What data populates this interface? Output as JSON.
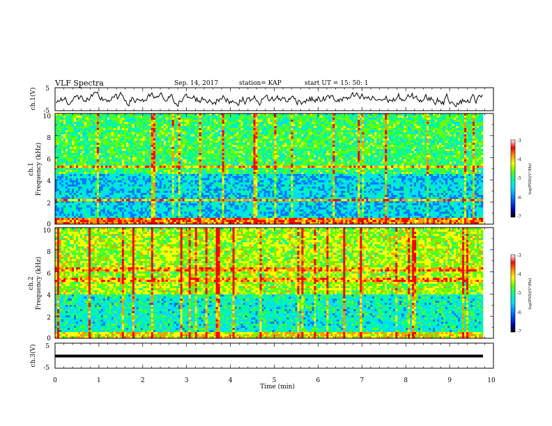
{
  "header": {
    "title": "VLF Spectra",
    "date": "Sep. 14, 2017",
    "station": "station= KAP",
    "start": "start  UT =   15: 50: 1"
  },
  "chart_data": [
    {
      "type": "line",
      "panel": "ch1-waveform",
      "ylabel": "ch.1(V)",
      "ylim": [
        -5,
        5
      ],
      "yticks": [
        "5",
        "-5"
      ],
      "xlim": [
        0,
        10
      ],
      "note_values": "continuous noisy waveform mostly between -3 and +3 V"
    },
    {
      "type": "heatmap",
      "panel": "ch1-spectrogram",
      "ylabel": "ch.1\nFrequency (kHz)",
      "ylabel_line1": "ch.1",
      "ylabel_line2": "Frequency (kHz)",
      "ylim": [
        0,
        10
      ],
      "yticks": [
        "0",
        "2",
        "4",
        "6",
        "8",
        "10"
      ],
      "xlim": [
        0,
        9.85
      ],
      "colorbar": {
        "label": "log(PSD)(V²/Hz)",
        "range": [
          -7,
          -3
        ],
        "ticks": [
          "-3",
          "-4",
          "-5",
          "-6",
          "-7"
        ]
      }
    },
    {
      "type": "heatmap",
      "panel": "ch2-spectrogram",
      "ylabel_line1": "ch.2",
      "ylabel_line2": "Frequency (kHz)",
      "ylim": [
        0,
        10
      ],
      "yticks": [
        "0",
        "2",
        "4",
        "6",
        "8",
        "10"
      ],
      "xlim": [
        0,
        9.85
      ],
      "colorbar": {
        "label": "log(PSD)(V²/Hz)",
        "range": [
          -7,
          -3
        ],
        "ticks": [
          "-3",
          "-4",
          "-5",
          "-6",
          "-7"
        ]
      }
    },
    {
      "type": "line",
      "panel": "ch3-waveform",
      "ylabel": "ch.3(V)",
      "ylim": [
        -5,
        5
      ],
      "yticks": [
        "5",
        "-5"
      ],
      "x": [
        0,
        9.85
      ],
      "y": [
        -1.5,
        -1.5
      ]
    }
  ],
  "xaxis": {
    "label": "Time (min)",
    "ticks": [
      "0",
      "1",
      "2",
      "3",
      "4",
      "5",
      "6",
      "7",
      "8",
      "9",
      "10"
    ]
  },
  "colors": {
    "scale": [
      "#000000",
      "#0000c8",
      "#0078ff",
      "#00dcff",
      "#00ff96",
      "#64ff00",
      "#ffff00",
      "#ff9600",
      "#ff0000",
      "#ffffff"
    ]
  }
}
